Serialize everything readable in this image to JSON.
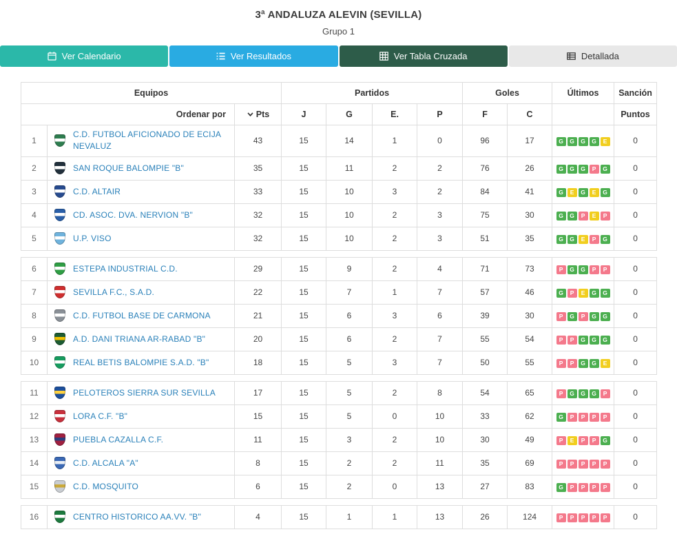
{
  "page": {
    "title": "3ª ANDALUZA ALEVIN (SEVILLA)",
    "subtitle": "Grupo 1"
  },
  "tabs": [
    {
      "label": "Ver Calendario",
      "icon": "calendar-icon"
    },
    {
      "label": "Ver Resultados",
      "icon": "list-icon"
    },
    {
      "label": "Ver Tabla Cruzada",
      "icon": "grid-icon"
    },
    {
      "label": "Detallada",
      "icon": "detail-table-icon"
    }
  ],
  "colors": {
    "tab_calendario": "#2bb8a9",
    "tab_resultados": "#29abe2",
    "tab_tabla_cruzada": "#2d5c49",
    "tab_detallada": "#e8e8e8",
    "win_badge": "#4caf50",
    "draw_badge": "#f1ce1f",
    "loss_badge": "#f4798b",
    "team_link": "#2980b9",
    "table_border": "#dddddd"
  },
  "table": {
    "headers": {
      "equipos": "Equipos",
      "partidos": "Partidos",
      "goles": "Goles",
      "ultimos": "Últimos",
      "sancion": "Sanción",
      "ordenar_por": "Ordenar por",
      "pts": "Pts",
      "j": "J",
      "g": "G",
      "e": "E.",
      "p": "P",
      "f": "F",
      "c": "C",
      "puntos": "Puntos"
    },
    "rows": [
      {
        "pos": 1,
        "team": "C.D. FUTBOL AFICIONADO DE ECIJA NEVALUZ",
        "pts": 43,
        "j": 15,
        "g": 14,
        "e": 1,
        "p": 0,
        "f": 96,
        "c": 17,
        "last5": [
          "G",
          "G",
          "G",
          "G",
          "E"
        ],
        "sancion": 0,
        "crest": [
          "#2e7d4f",
          "#ffffff"
        ],
        "gap_before": false
      },
      {
        "pos": 2,
        "team": "SAN ROQUE BALOMPIE \"B\"",
        "pts": 35,
        "j": 15,
        "g": 11,
        "e": 2,
        "p": 2,
        "f": 76,
        "c": 26,
        "last5": [
          "G",
          "G",
          "G",
          "P",
          "G"
        ],
        "sancion": 0,
        "crest": [
          "#22303c",
          "#ffffff"
        ],
        "gap_before": false
      },
      {
        "pos": 3,
        "team": "C.D. ALTAIR",
        "pts": 33,
        "j": 15,
        "g": 10,
        "e": 3,
        "p": 2,
        "f": 84,
        "c": 41,
        "last5": [
          "G",
          "E",
          "G",
          "E",
          "G"
        ],
        "sancion": 0,
        "crest": [
          "#274b8f",
          "#ffffff"
        ],
        "gap_before": false
      },
      {
        "pos": 4,
        "team": "CD. ASOC. DVA. NERVION \"B\"",
        "pts": 32,
        "j": 15,
        "g": 10,
        "e": 2,
        "p": 3,
        "f": 75,
        "c": 30,
        "last5": [
          "G",
          "G",
          "P",
          "E",
          "P"
        ],
        "sancion": 0,
        "crest": [
          "#2a5fa8",
          "#ffffff"
        ],
        "gap_before": false
      },
      {
        "pos": 5,
        "team": "U.P. VISO",
        "pts": 32,
        "j": 15,
        "g": 10,
        "e": 2,
        "p": 3,
        "f": 51,
        "c": 35,
        "last5": [
          "G",
          "G",
          "E",
          "P",
          "G"
        ],
        "sancion": 0,
        "crest": [
          "#6fb3dd",
          "#ffffff"
        ],
        "gap_before": false
      },
      {
        "pos": 6,
        "team": "ESTEPA INDUSTRIAL C.D.",
        "pts": 29,
        "j": 15,
        "g": 9,
        "e": 2,
        "p": 4,
        "f": 71,
        "c": 73,
        "last5": [
          "P",
          "G",
          "G",
          "P",
          "P"
        ],
        "sancion": 0,
        "crest": [
          "#2f9e44",
          "#ffffff"
        ],
        "gap_before": true
      },
      {
        "pos": 7,
        "team": "SEVILLA F.C., S.A.D.",
        "pts": 22,
        "j": 15,
        "g": 7,
        "e": 1,
        "p": 7,
        "f": 57,
        "c": 46,
        "last5": [
          "G",
          "P",
          "E",
          "G",
          "G"
        ],
        "sancion": 0,
        "crest": [
          "#cf2e2e",
          "#ffffff"
        ],
        "gap_before": false
      },
      {
        "pos": 8,
        "team": "C.D. FUTBOL BASE DE CARMONA",
        "pts": 21,
        "j": 15,
        "g": 6,
        "e": 3,
        "p": 6,
        "f": 39,
        "c": 30,
        "last5": [
          "P",
          "G",
          "P",
          "G",
          "G"
        ],
        "sancion": 0,
        "crest": [
          "#8a9097",
          "#ffffff"
        ],
        "gap_before": false
      },
      {
        "pos": 9,
        "team": "A.D. DANI TRIANA AR-RABAD \"B\"",
        "pts": 20,
        "j": 15,
        "g": 6,
        "e": 2,
        "p": 7,
        "f": 55,
        "c": 54,
        "last5": [
          "P",
          "P",
          "G",
          "G",
          "G"
        ],
        "sancion": 0,
        "crest": [
          "#1d5c33",
          "#f2c100"
        ],
        "gap_before": false
      },
      {
        "pos": 10,
        "team": "REAL BETIS BALOMPIE S.A.D. \"B\"",
        "pts": 18,
        "j": 15,
        "g": 5,
        "e": 3,
        "p": 7,
        "f": 50,
        "c": 55,
        "last5": [
          "P",
          "P",
          "G",
          "G",
          "E"
        ],
        "sancion": 0,
        "crest": [
          "#169c5f",
          "#ffffff"
        ],
        "gap_before": false
      },
      {
        "pos": 11,
        "team": "PELOTEROS SIERRA SUR SEVILLA",
        "pts": 17,
        "j": 15,
        "g": 5,
        "e": 2,
        "p": 8,
        "f": 54,
        "c": 65,
        "last5": [
          "P",
          "G",
          "G",
          "G",
          "P"
        ],
        "sancion": 0,
        "crest": [
          "#1c4f9c",
          "#ffd23e"
        ],
        "gap_before": true
      },
      {
        "pos": 12,
        "team": "LORA C.F. \"B\"",
        "pts": 15,
        "j": 15,
        "g": 5,
        "e": 0,
        "p": 10,
        "f": 33,
        "c": 62,
        "last5": [
          "G",
          "P",
          "P",
          "P",
          "P"
        ],
        "sancion": 0,
        "crest": [
          "#c8303c",
          "#ffffff"
        ],
        "gap_before": false
      },
      {
        "pos": 13,
        "team": "PUEBLA CAZALLA C.F.",
        "pts": 11,
        "j": 15,
        "g": 3,
        "e": 2,
        "p": 10,
        "f": 30,
        "c": 49,
        "last5": [
          "P",
          "E",
          "P",
          "P",
          "G"
        ],
        "sancion": 0,
        "crest": [
          "#a02040",
          "#2b3f7e"
        ],
        "gap_before": false
      },
      {
        "pos": 14,
        "team": "C.D. ALCALA \"A\"",
        "pts": 8,
        "j": 15,
        "g": 2,
        "e": 2,
        "p": 11,
        "f": 35,
        "c": 69,
        "last5": [
          "P",
          "P",
          "P",
          "P",
          "P"
        ],
        "sancion": 0,
        "crest": [
          "#3a68b5",
          "#e8eef5"
        ],
        "gap_before": false
      },
      {
        "pos": 15,
        "team": "C.D. MOSQUITO",
        "pts": 6,
        "j": 15,
        "g": 2,
        "e": 0,
        "p": 13,
        "f": 27,
        "c": 83,
        "last5": [
          "G",
          "P",
          "P",
          "P",
          "P"
        ],
        "sancion": 0,
        "crest": [
          "#c9cdd2",
          "#caa93a"
        ],
        "gap_before": false
      },
      {
        "pos": 16,
        "team": "CENTRO HISTORICO AA.VV. \"B\"",
        "pts": 4,
        "j": 15,
        "g": 1,
        "e": 1,
        "p": 13,
        "f": 26,
        "c": 124,
        "last5": [
          "P",
          "P",
          "P",
          "P",
          "P"
        ],
        "sancion": 0,
        "crest": [
          "#1d7a3e",
          "#ffffff"
        ],
        "gap_before": true
      }
    ]
  }
}
